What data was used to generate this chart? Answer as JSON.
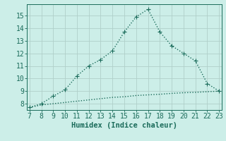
{
  "xlabel": "Humidex (Indice chaleur)",
  "bg_color": "#cceee8",
  "line_color": "#1a6b5a",
  "grid_color": "#b0cfc9",
  "x_main": [
    7,
    8,
    9,
    10,
    11,
    12,
    13,
    14,
    15,
    16,
    17,
    18,
    19,
    20,
    21,
    22,
    23
  ],
  "y_main": [
    7.7,
    8.0,
    8.6,
    9.1,
    10.2,
    11.0,
    11.5,
    12.2,
    13.7,
    14.9,
    15.5,
    13.7,
    12.6,
    12.0,
    11.4,
    9.6,
    9.0
  ],
  "x_base": [
    7,
    8,
    9,
    10,
    11,
    12,
    13,
    14,
    15,
    16,
    17,
    18,
    19,
    20,
    21,
    22,
    23
  ],
  "y_base": [
    7.7,
    7.9,
    8.0,
    8.1,
    8.2,
    8.3,
    8.4,
    8.5,
    8.55,
    8.65,
    8.7,
    8.75,
    8.82,
    8.87,
    8.9,
    8.95,
    9.0
  ],
  "xlim": [
    6.8,
    23.2
  ],
  "ylim": [
    7.5,
    15.9
  ],
  "yticks": [
    8,
    9,
    10,
    11,
    12,
    13,
    14,
    15
  ],
  "xticks": [
    7,
    8,
    9,
    10,
    11,
    12,
    13,
    14,
    15,
    16,
    17,
    18,
    19,
    20,
    21,
    22,
    23
  ],
  "marker_size": 2.5,
  "line_width": 1.0,
  "xlabel_fontsize": 7.5,
  "tick_fontsize": 7
}
